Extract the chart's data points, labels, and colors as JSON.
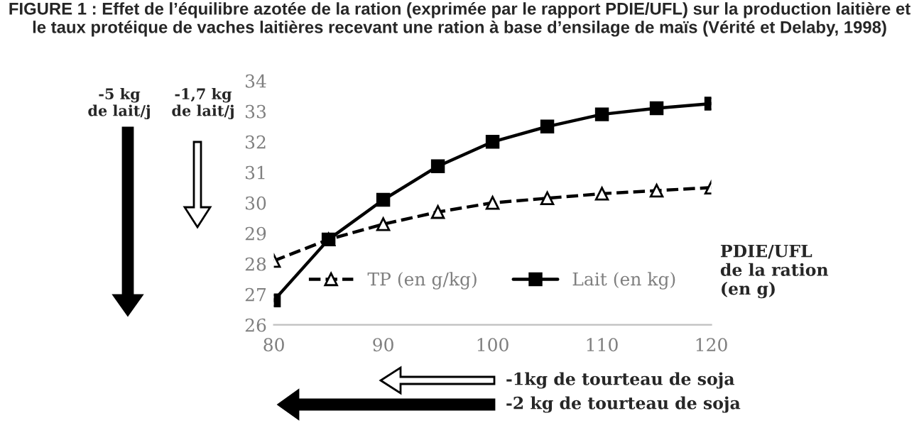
{
  "chart_data": {
    "type": "line",
    "title": "FIGURE 1 : Effet de l’équilibre azotée de la ration (exprimée par le rapport PDIE/UFL) sur la production laitière et le taux protéique de vaches laitières recevant une ration à base d’ensilage de maïs (Vérité et Delaby, 1998)",
    "xlabel": "PDIE/UFL\nde la ration\n(en g)",
    "x": [
      80,
      85,
      90,
      95,
      100,
      105,
      110,
      115,
      120
    ],
    "series": [
      {
        "name": "TP (en g/kg)",
        "color": "#000000",
        "line_style": "dashed",
        "marker": "triangle",
        "values": [
          28.1,
          28.8,
          29.3,
          29.7,
          30.0,
          30.15,
          30.3,
          30.4,
          30.5
        ]
      },
      {
        "name": "Lait (en kg)",
        "color": "#000000",
        "line_style": "solid",
        "marker": "square",
        "values": [
          26.8,
          28.8,
          30.1,
          31.2,
          32.0,
          32.5,
          32.9,
          33.1,
          33.25
        ]
      }
    ],
    "xlim": [
      80,
      120
    ],
    "xticks": [
      80,
      90,
      100,
      110,
      120
    ],
    "ylim": [
      26,
      34
    ],
    "yticks": [
      26,
      27,
      28,
      29,
      30,
      31,
      32,
      33,
      34
    ],
    "grid": false,
    "legend": "bottom",
    "annotations": [
      "-5 kg\nde lait/j",
      "-1,7 kg\nde lait/j",
      "-1kg de tourteau de soja",
      "-2 kg de tourteau de soja"
    ]
  }
}
